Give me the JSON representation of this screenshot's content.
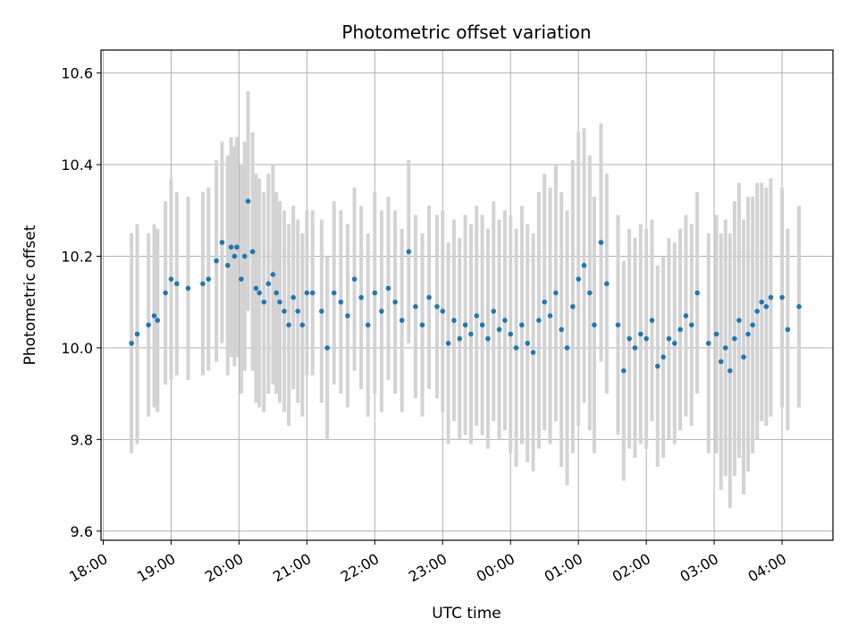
{
  "chart_data": {
    "type": "scatter",
    "title": "Photometric offset variation",
    "xlabel": "UTC time",
    "ylabel": "Photometric offset",
    "x_tick_labels": [
      "18:00",
      "19:00",
      "20:00",
      "21:00",
      "22:00",
      "23:00",
      "00:00",
      "01:00",
      "02:00",
      "03:00",
      "04:00"
    ],
    "y_ticks": [
      9.6,
      9.8,
      10.0,
      10.2,
      10.4,
      10.6
    ],
    "y_tick_labels": [
      "9.6",
      "9.8",
      "10.0",
      "10.2",
      "10.4",
      "10.6"
    ],
    "xlim": [
      "17:58",
      "04:45"
    ],
    "ylim": [
      9.58,
      10.65
    ],
    "grid": true,
    "colors": {
      "points": "#1f77b4",
      "errorbars": "#d3d3d3",
      "grid": "#b0b0b0"
    },
    "series": [
      {
        "x": [
          "18:25",
          "18:30",
          "18:40",
          "18:45",
          "18:48",
          "18:55",
          "19:00",
          "19:05",
          "19:15",
          "19:28",
          "19:33",
          "19:40",
          "19:45",
          "19:50",
          "19:53",
          "19:56",
          "19:58",
          "20:02",
          "20:05",
          "20:08",
          "20:12",
          "20:15",
          "20:18",
          "20:22",
          "20:26",
          "20:30",
          "20:33",
          "20:36",
          "20:40",
          "20:44",
          "20:48",
          "20:52",
          "20:56",
          "21:00",
          "21:05",
          "21:13",
          "21:18",
          "21:24",
          "21:30",
          "21:36",
          "21:42",
          "21:48",
          "21:54",
          "22:00",
          "22:06",
          "22:12",
          "22:18",
          "22:24",
          "22:30",
          "22:36",
          "22:42",
          "22:48",
          "22:55",
          "23:00",
          "23:05",
          "23:10",
          "23:15",
          "23:20",
          "23:25",
          "23:30",
          "23:35",
          "23:40",
          "23:45",
          "23:50",
          "23:55",
          "00:00",
          "00:05",
          "00:10",
          "00:15",
          "00:20",
          "00:25",
          "00:30",
          "00:35",
          "00:40",
          "00:45",
          "00:50",
          "00:55",
          "01:00",
          "01:05",
          "01:10",
          "01:14",
          "01:20",
          "01:25",
          "01:35",
          "01:40",
          "01:45",
          "01:50",
          "01:55",
          "02:00",
          "02:05",
          "02:10",
          "02:15",
          "02:20",
          "02:25",
          "02:30",
          "02:35",
          "02:40",
          "02:45",
          "02:55",
          "03:02",
          "03:06",
          "03:10",
          "03:14",
          "03:18",
          "03:22",
          "03:26",
          "03:30",
          "03:34",
          "03:38",
          "03:42",
          "03:46",
          "03:50",
          "04:00",
          "04:05",
          "04:15"
        ],
        "y": [
          10.01,
          10.03,
          10.05,
          10.07,
          10.06,
          10.12,
          10.15,
          10.14,
          10.13,
          10.14,
          10.15,
          10.19,
          10.23,
          10.18,
          10.22,
          10.2,
          10.22,
          10.15,
          10.2,
          10.32,
          10.21,
          10.13,
          10.12,
          10.1,
          10.14,
          10.16,
          10.12,
          10.1,
          10.08,
          10.05,
          10.11,
          10.08,
          10.05,
          10.12,
          10.12,
          10.08,
          10.0,
          10.12,
          10.1,
          10.07,
          10.15,
          10.11,
          10.05,
          10.12,
          10.08,
          10.13,
          10.1,
          10.06,
          10.21,
          10.09,
          10.05,
          10.11,
          10.09,
          10.08,
          10.01,
          10.06,
          10.02,
          10.05,
          10.03,
          10.07,
          10.05,
          10.02,
          10.08,
          10.04,
          10.06,
          10.03,
          10.0,
          10.05,
          10.01,
          9.99,
          10.06,
          10.1,
          10.07,
          10.12,
          10.04,
          10.0,
          10.09,
          10.15,
          10.18,
          10.12,
          10.05,
          10.23,
          10.14,
          10.05,
          9.95,
          10.02,
          10.0,
          10.03,
          10.02,
          10.06,
          9.96,
          9.98,
          10.02,
          10.01,
          10.04,
          10.07,
          10.05,
          10.12,
          10.01,
          10.03,
          9.97,
          10.0,
          9.95,
          10.02,
          10.06,
          9.98,
          10.03,
          10.05,
          10.08,
          10.1,
          10.09,
          10.11,
          10.11,
          10.04,
          10.09
        ],
        "yerr": [
          0.24,
          0.24,
          0.2,
          0.2,
          0.2,
          0.2,
          0.22,
          0.2,
          0.2,
          0.2,
          0.2,
          0.22,
          0.22,
          0.24,
          0.24,
          0.24,
          0.24,
          0.25,
          0.25,
          0.24,
          0.26,
          0.25,
          0.25,
          0.24,
          0.24,
          0.24,
          0.22,
          0.22,
          0.22,
          0.22,
          0.2,
          0.2,
          0.2,
          0.18,
          0.18,
          0.2,
          0.2,
          0.2,
          0.2,
          0.2,
          0.2,
          0.2,
          0.2,
          0.22,
          0.22,
          0.2,
          0.2,
          0.2,
          0.2,
          0.2,
          0.2,
          0.2,
          0.2,
          0.22,
          0.22,
          0.22,
          0.22,
          0.24,
          0.24,
          0.24,
          0.24,
          0.24,
          0.24,
          0.24,
          0.24,
          0.26,
          0.26,
          0.26,
          0.26,
          0.26,
          0.28,
          0.28,
          0.28,
          0.28,
          0.3,
          0.3,
          0.32,
          0.32,
          0.3,
          0.3,
          0.28,
          0.26,
          0.24,
          0.24,
          0.24,
          0.24,
          0.24,
          0.24,
          0.24,
          0.22,
          0.22,
          0.22,
          0.22,
          0.22,
          0.22,
          0.22,
          0.22,
          0.22,
          0.24,
          0.26,
          0.28,
          0.28,
          0.3,
          0.3,
          0.3,
          0.3,
          0.3,
          0.28,
          0.28,
          0.26,
          0.26,
          0.26,
          0.24,
          0.22,
          0.22
        ]
      }
    ]
  }
}
